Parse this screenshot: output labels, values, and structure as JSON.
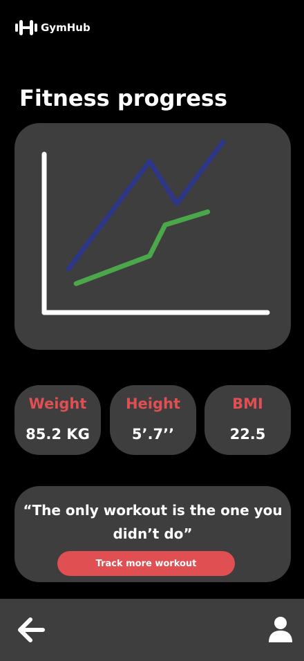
{
  "app": {
    "name": "GymHub",
    "logo_icon": "dumbbell-icon"
  },
  "page": {
    "title": "Fitness progress"
  },
  "chart_data": {
    "type": "line",
    "title": "",
    "xlabel": "",
    "ylabel": "",
    "grid": false,
    "x": [
      0,
      1,
      2,
      3,
      4
    ],
    "xlim": [
      -1,
      5
    ],
    "ylim": [
      0,
      10
    ],
    "series": [
      {
        "color": "#2e3787",
        "points": [
          [
            0,
            2.6
          ],
          [
            2.1,
            9.2
          ],
          [
            2.8,
            6.6
          ],
          [
            4.0,
            10.4
          ]
        ]
      },
      {
        "color": "#4aa84b",
        "points": [
          [
            0.2,
            1.7
          ],
          [
            2.1,
            3.4
          ],
          [
            2.5,
            5.3
          ],
          [
            3.6,
            6.1
          ]
        ]
      }
    ],
    "colors": {
      "axes": "#ffffff",
      "background": "#3e3e3e"
    }
  },
  "stats": [
    {
      "label": "Weight",
      "value": "85.2 KG"
    },
    {
      "label": "Height",
      "value": "5’.7’’"
    },
    {
      "label": "BMI",
      "value": "22.5"
    }
  ],
  "quote": {
    "text": "“The only workout is the one you didn’t do”",
    "button_label": "Track more workout"
  },
  "nav": {
    "back_icon": "arrow-left-icon",
    "profile_icon": "user-icon"
  },
  "colors": {
    "background": "#000000",
    "card": "#3e3e3e",
    "accent": "#e04f52",
    "text": "#ffffff"
  }
}
